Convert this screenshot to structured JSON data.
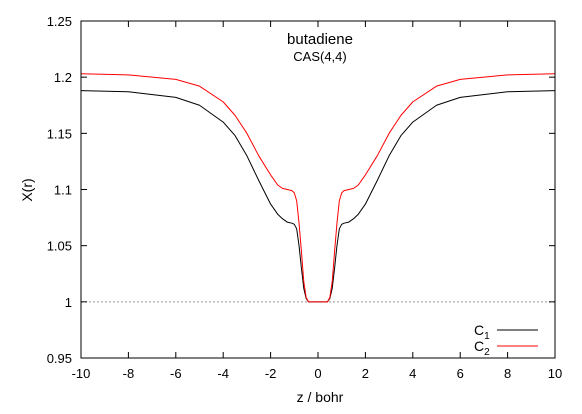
{
  "chart_data": {
    "type": "line",
    "title": "butadiene",
    "subtitle": "CAS(4,4)",
    "xlabel": "z / bohr",
    "ylabel": "X(r)",
    "xlim": [
      -10,
      10
    ],
    "ylim": [
      0.95,
      1.25
    ],
    "xticks": [
      -10,
      -8,
      -6,
      -4,
      -2,
      0,
      2,
      4,
      6,
      8,
      10
    ],
    "yticks": [
      0.95,
      1,
      1.05,
      1.1,
      1.15,
      1.2,
      1.25
    ],
    "ytick_labels": [
      "0.95",
      "1",
      "1.05",
      "1.1",
      "1.15",
      "1.2",
      "1.25"
    ],
    "reference_line": {
      "y": 1.0,
      "style": "dotted",
      "color": "#999999"
    },
    "legend_position": "bottom-right",
    "series": [
      {
        "name": "C1",
        "legend_base": "C",
        "legend_sub": "1",
        "color": "#000000",
        "x": [
          -10,
          -8,
          -6,
          -5,
          -4,
          -3.5,
          -3,
          -2.5,
          -2,
          -1.7,
          -1.5,
          -1.3,
          -1.1,
          -1.0,
          -0.9,
          -0.8,
          -0.7,
          -0.6,
          -0.5,
          -0.4,
          -0.3,
          -0.2,
          0,
          0.2,
          0.3,
          0.4,
          0.5,
          0.6,
          0.7,
          0.8,
          0.9,
          1.0,
          1.1,
          1.3,
          1.5,
          1.7,
          2,
          2.5,
          3,
          3.5,
          4,
          5,
          6,
          8,
          10
        ],
        "y": [
          1.188,
          1.187,
          1.182,
          1.175,
          1.16,
          1.148,
          1.13,
          1.108,
          1.087,
          1.078,
          1.074,
          1.071,
          1.07,
          1.069,
          1.065,
          1.05,
          1.03,
          1.012,
          1.003,
          1.0,
          1.0,
          1.0,
          1.0,
          1.0,
          1.0,
          1.0,
          1.003,
          1.012,
          1.03,
          1.05,
          1.065,
          1.069,
          1.07,
          1.071,
          1.074,
          1.078,
          1.087,
          1.108,
          1.13,
          1.148,
          1.16,
          1.175,
          1.182,
          1.187,
          1.188
        ]
      },
      {
        "name": "C2",
        "legend_base": "C",
        "legend_sub": "2",
        "color": "#ff0000",
        "x": [
          -10,
          -8,
          -6,
          -5,
          -4,
          -3.5,
          -3,
          -2.5,
          -2,
          -1.7,
          -1.5,
          -1.3,
          -1.1,
          -1.0,
          -0.9,
          -0.8,
          -0.7,
          -0.6,
          -0.5,
          -0.4,
          -0.3,
          -0.2,
          0,
          0.2,
          0.3,
          0.4,
          0.5,
          0.6,
          0.7,
          0.8,
          0.9,
          1.0,
          1.1,
          1.3,
          1.5,
          1.7,
          2,
          2.5,
          3,
          3.5,
          4,
          5,
          6,
          8,
          10
        ],
        "y": [
          1.203,
          1.202,
          1.198,
          1.192,
          1.178,
          1.166,
          1.15,
          1.13,
          1.113,
          1.104,
          1.101,
          1.1,
          1.099,
          1.097,
          1.09,
          1.07,
          1.045,
          1.018,
          1.004,
          1.0,
          1.0,
          1.0,
          1.0,
          1.0,
          1.0,
          1.0,
          1.004,
          1.018,
          1.045,
          1.07,
          1.09,
          1.097,
          1.099,
          1.1,
          1.101,
          1.104,
          1.113,
          1.13,
          1.15,
          1.166,
          1.178,
          1.192,
          1.198,
          1.202,
          1.203
        ]
      }
    ]
  }
}
